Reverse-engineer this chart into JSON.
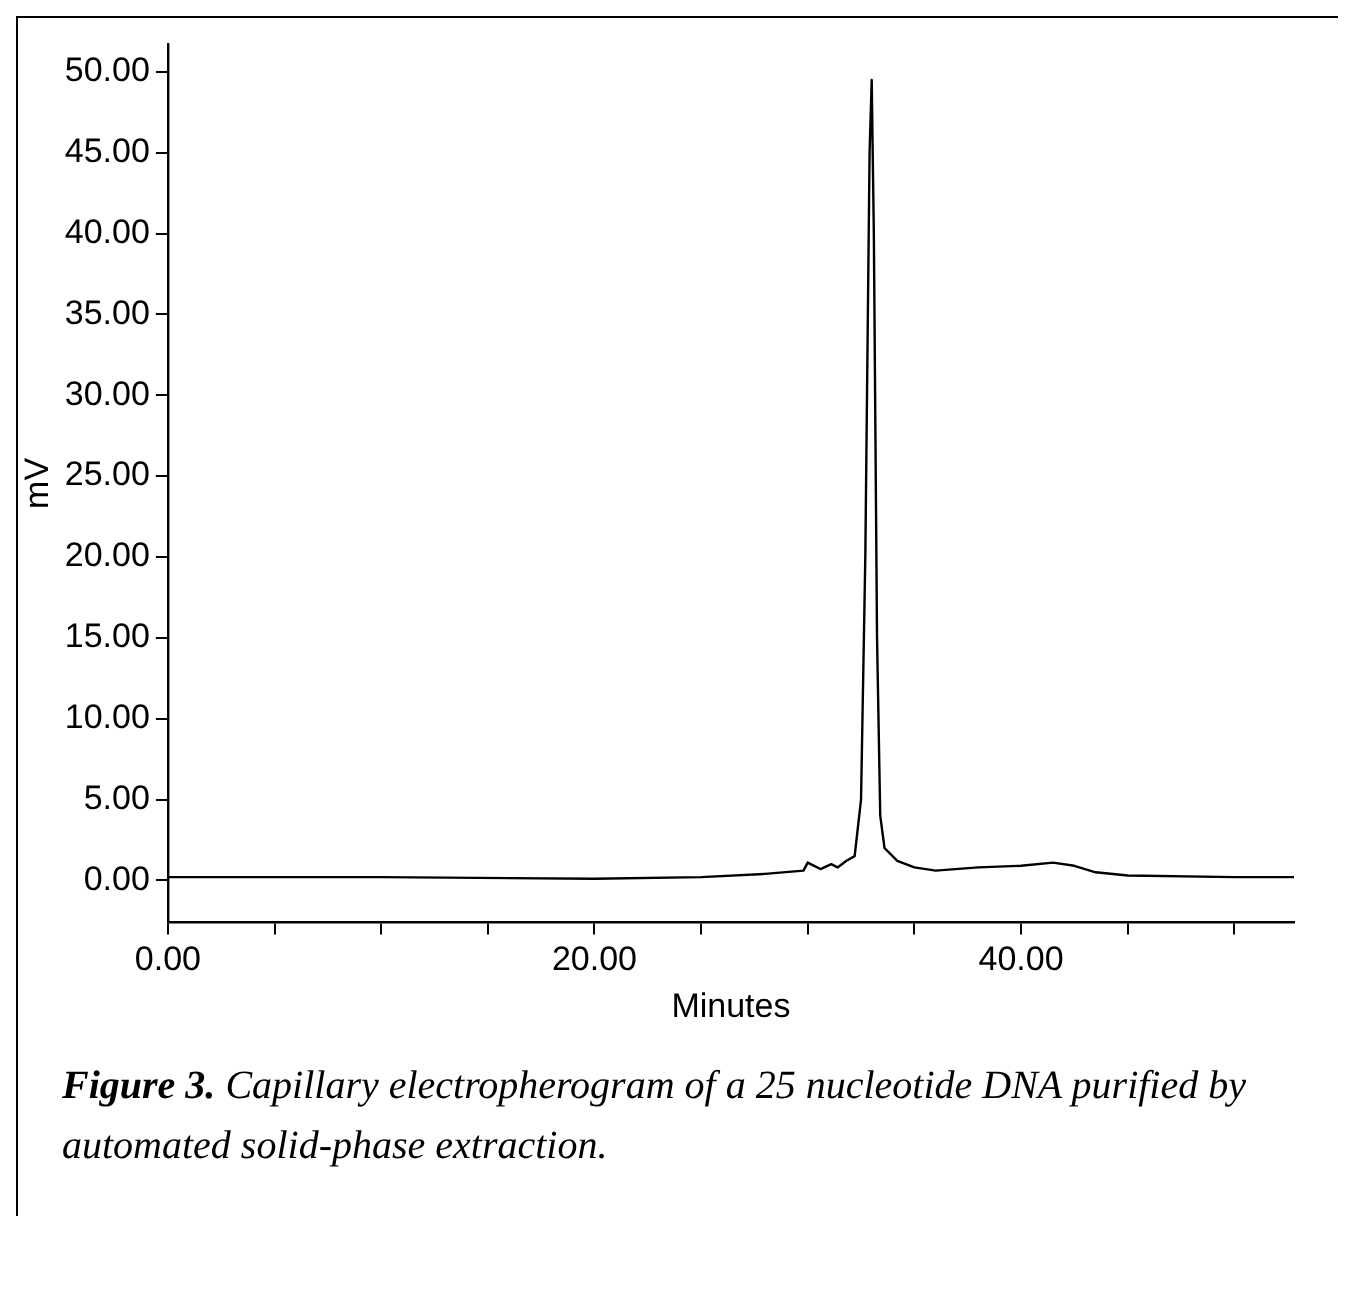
{
  "chart_data": {
    "type": "line",
    "xlabel": "Minutes",
    "ylabel": "mV",
    "annotations": [
      "Figure 3.",
      "Capillary electropherogram of a 25 nucleotide DNA purified by automated solid-phase extraction."
    ],
    "series": [
      {
        "color": "#000000",
        "x": [
          0,
          10,
          20,
          25,
          28,
          29.8,
          30.0,
          30.3,
          30.6,
          31.1,
          31.4,
          31.8,
          32.2,
          32.5,
          32.7,
          32.9,
          33.0,
          33.1,
          33.25,
          33.4,
          33.6,
          34.2,
          35,
          36,
          38,
          40,
          41.5,
          42.5,
          43.5,
          45,
          50,
          52.8
        ],
        "values": [
          0.2,
          0.2,
          0.1,
          0.2,
          0.4,
          0.6,
          1.1,
          0.9,
          0.7,
          1.0,
          0.8,
          1.2,
          1.5,
          5,
          20,
          45,
          49.5,
          40,
          15,
          4,
          2.0,
          1.2,
          0.8,
          0.6,
          0.8,
          0.9,
          1.1,
          0.9,
          0.5,
          0.3,
          0.2,
          0.2
        ]
      }
    ],
    "xlim": [
      0,
      52.8
    ],
    "ylim": [
      -2.6,
      51.7
    ],
    "xticks": [
      {
        "value": 0,
        "label": "0.00"
      },
      {
        "value": 5,
        "label": null
      },
      {
        "value": 10,
        "label": null
      },
      {
        "value": 15,
        "label": null
      },
      {
        "value": 20,
        "label": "20.00"
      },
      {
        "value": 25,
        "label": null
      },
      {
        "value": 30,
        "label": null
      },
      {
        "value": 35,
        "label": null
      },
      {
        "value": 40,
        "label": "40.00"
      },
      {
        "value": 45,
        "label": null
      },
      {
        "value": 50,
        "label": null
      }
    ],
    "yticks": [
      {
        "value": 0,
        "label": "0.00"
      },
      {
        "value": 5,
        "label": "5.00"
      },
      {
        "value": 10,
        "label": "10.00"
      },
      {
        "value": 15,
        "label": "15.00"
      },
      {
        "value": 20,
        "label": "20.00"
      },
      {
        "value": 25,
        "label": "25.00"
      },
      {
        "value": 30,
        "label": "30.00"
      },
      {
        "value": 35,
        "label": "35.00"
      },
      {
        "value": 40,
        "label": "40.00"
      },
      {
        "value": 45,
        "label": "45.00"
      },
      {
        "value": 50,
        "label": "50.00"
      }
    ],
    "grid": false,
    "legend": false,
    "marker": "none",
    "line_style": "solid"
  }
}
